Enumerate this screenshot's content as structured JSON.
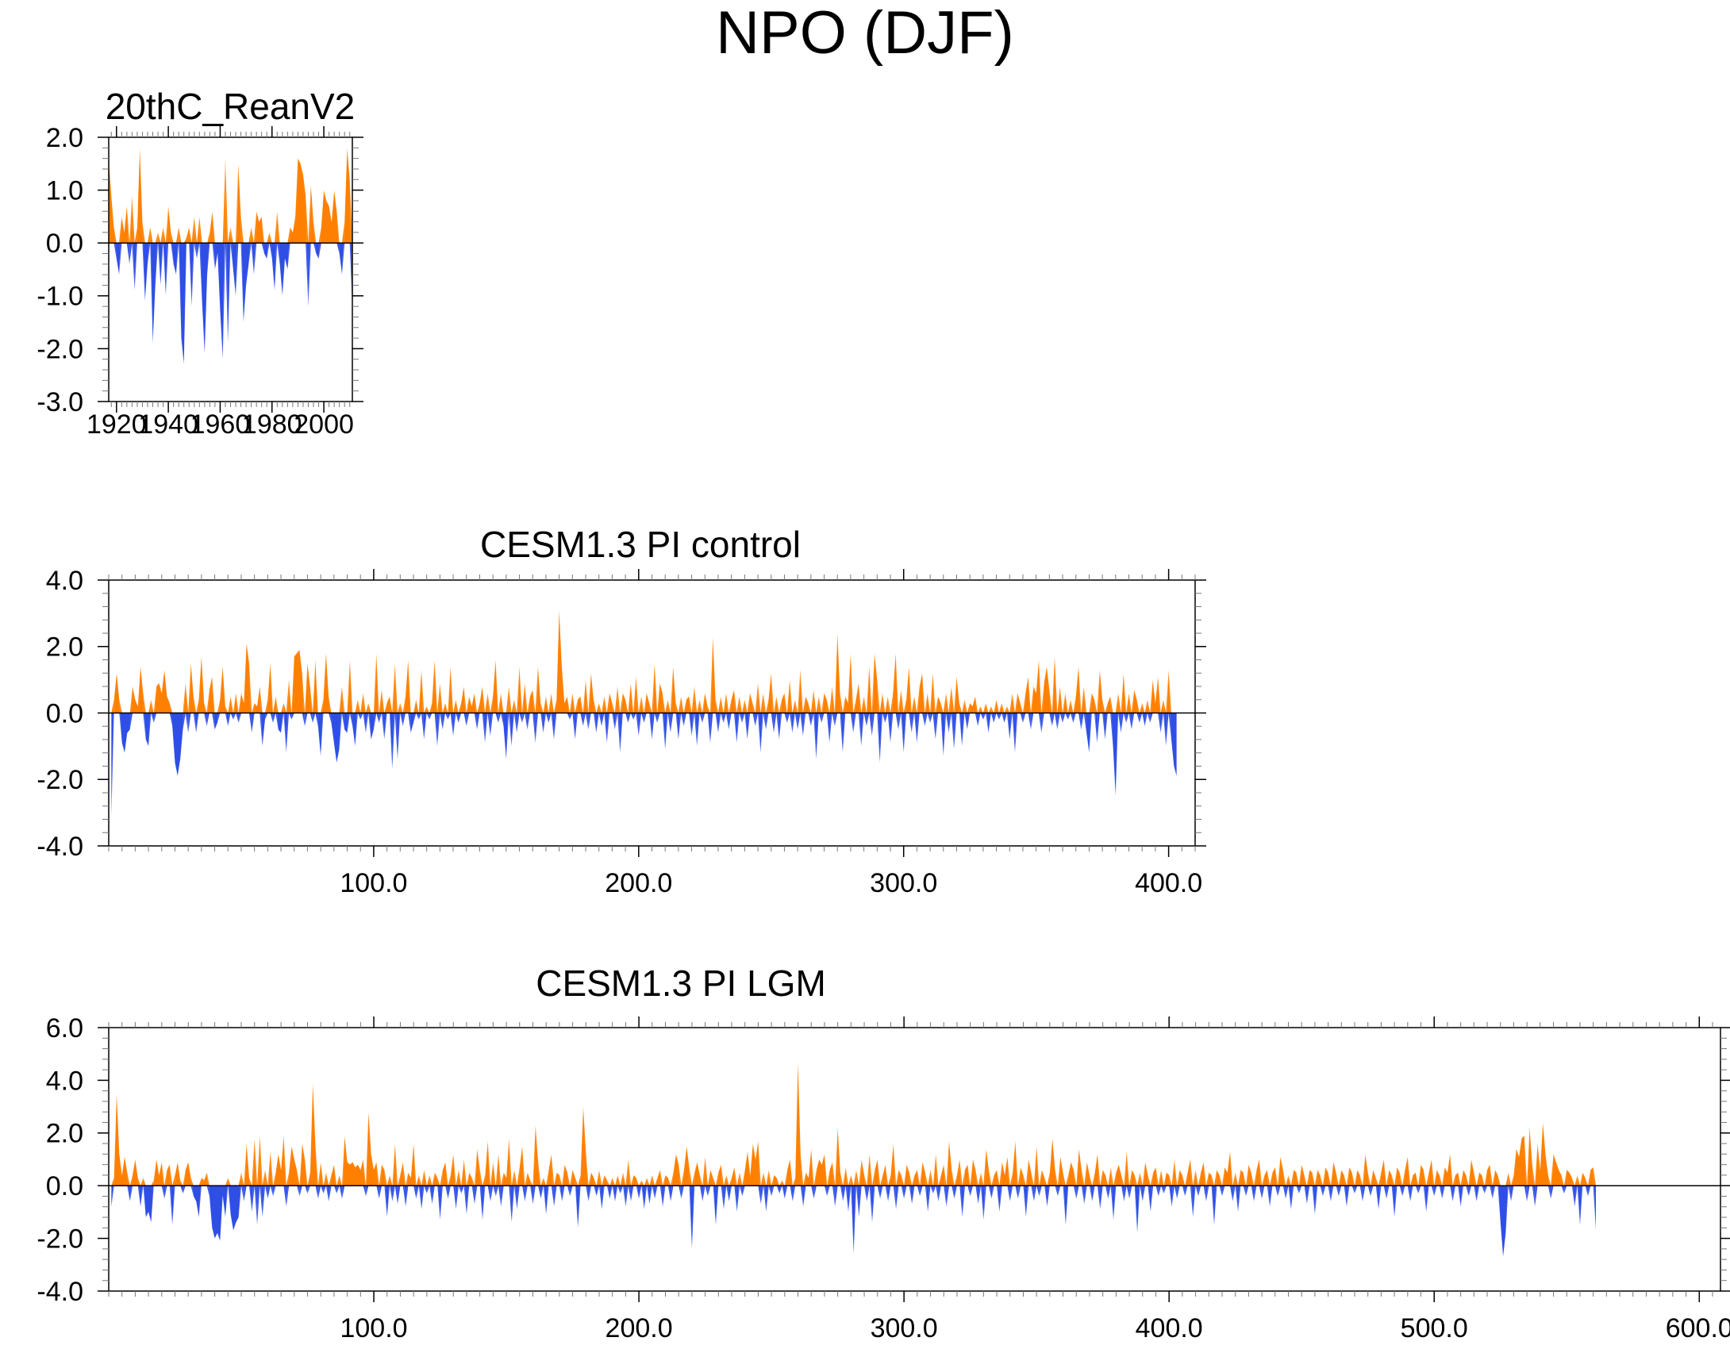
{
  "figure": {
    "title": "NPO (DJF)"
  },
  "colors": {
    "positive": "#ff8000",
    "negative": "#2e4ee6",
    "axis": "#000000"
  },
  "chart_data": [
    {
      "id": "reanalysis",
      "type": "area",
      "title": "20thC_ReanV2",
      "xlabel": "",
      "ylabel": "",
      "xlim": [
        1917,
        2011
      ],
      "ylim": [
        -3.0,
        2.0
      ],
      "xticks": [
        1920,
        1940,
        1960,
        1980,
        2000
      ],
      "xtick_labels": [
        "1920",
        "1940",
        "1960",
        "1980",
        "2000"
      ],
      "yticks": [
        -3.0,
        -2.0,
        -1.0,
        0.0,
        1.0,
        2.0
      ],
      "ytick_labels": [
        "-3.0",
        "-2.0",
        "-1.0",
        "0.0",
        "1.0",
        "2.0"
      ],
      "fill_above_zero": "orange",
      "fill_below_zero": "blue",
      "x_start": 1917,
      "x_step": 1,
      "values": [
        1.6,
        0.9,
        0.3,
        -0.3,
        -0.6,
        0.5,
        0.2,
        0.7,
        -0.4,
        0.9,
        -0.9,
        0.3,
        1.8,
        0.4,
        -1.1,
        -0.4,
        0.3,
        -1.9,
        -0.8,
        0.2,
        -0.8,
        0.3,
        -1.0,
        0.7,
        0.2,
        -0.4,
        -0.6,
        0.3,
        -1.8,
        -2.3,
        0.1,
        0.3,
        -1.2,
        0.5,
        -0.3,
        0.5,
        -1.1,
        -2.1,
        -0.6,
        0.2,
        0.6,
        -0.5,
        -0.2,
        -1.3,
        -2.2,
        1.6,
        -1.9,
        0.3,
        -0.5,
        -1.0,
        1.5,
        0.5,
        -1.5,
        -0.8,
        -0.4,
        0.3,
        -0.6,
        0.6,
        0.4,
        0.5,
        -0.2,
        -0.3,
        0.2,
        -0.3,
        -0.9,
        0.6,
        -0.4,
        -1.0,
        -0.3,
        -0.5,
        0.3,
        0.2,
        0.5,
        1.6,
        1.5,
        1.3,
        0.9,
        -1.2,
        1.1,
        0.4,
        -0.2,
        -0.3,
        0.3,
        1.0,
        0.8,
        0.7,
        0.4,
        1.0,
        0.6,
        -0.2,
        -0.6,
        0.4,
        1.8,
        1.2,
        -1.2
      ]
    },
    {
      "id": "pi-control",
      "type": "area",
      "title": "CESM1.3 PI control",
      "xlabel": "",
      "ylabel": "",
      "xlim": [
        0,
        410
      ],
      "ylim": [
        -4.0,
        4.0
      ],
      "xticks": [
        100,
        200,
        300,
        400
      ],
      "xtick_labels": [
        "100.0",
        "200.0",
        "300.0",
        "400.0"
      ],
      "yticks": [
        -4.0,
        -2.0,
        0.0,
        2.0,
        4.0
      ],
      "ytick_labels": [
        "-4.0",
        "-2.0",
        "0.0",
        "2.0",
        "4.0"
      ],
      "fill_above_zero": "orange",
      "fill_below_zero": "blue",
      "x_start": 1,
      "x_step": 1,
      "values": [
        -3.1,
        0.4,
        1.2,
        0.4,
        -0.9,
        -1.2,
        -0.6,
        -0.5,
        0.8,
        0.4,
        0.2,
        1.4,
        0.6,
        -0.8,
        -1.0,
        0.4,
        -0.3,
        0.8,
        0.9,
        0.6,
        1.3,
        0.5,
        0.3,
        -0.4,
        -1.5,
        -1.9,
        -1.4,
        -0.5,
        0.9,
        -0.6,
        1.5,
        0.5,
        -0.6,
        0.4,
        1.7,
        0.3,
        -0.4,
        0.7,
        1.1,
        -0.5,
        -0.3,
        0.4,
        1.4,
        0.2,
        -0.4,
        0.5,
        -0.2,
        0.6,
        -0.3,
        0.6,
        0.3,
        2.1,
        1.5,
        -0.6,
        0.3,
        0.2,
        0.8,
        -1.0,
        -0.2,
        0.4,
        1.5,
        -0.3,
        0.5,
        -0.5,
        -0.6,
        0.3,
        -1.2,
        1.0,
        -0.2,
        1.7,
        1.8,
        1.9,
        1.2,
        -0.4,
        1.5,
        0.8,
        -0.3,
        1.6,
        -0.4,
        -1.3,
        0.4,
        1.8,
        0.5,
        -0.3,
        -0.9,
        -1.5,
        -1.1,
        0.8,
        -0.5,
        -0.6,
        1.6,
        -0.4,
        -1.0,
        0.4,
        -0.2,
        0.6,
        -0.6,
        0.3,
        -0.8,
        -0.5,
        1.8,
        -0.3,
        0.7,
        -0.8,
        0.3,
        0.5,
        -1.7,
        1.5,
        -1.4,
        0.3,
        -0.4,
        0.5,
        1.6,
        -0.6,
        -0.3,
        0.4,
        -0.2,
        1.3,
        -0.8,
        0.2,
        -0.2,
        0.3,
        1.6,
        -1.0,
        0.9,
        -0.5,
        0.3,
        -0.2,
        1.4,
        -0.7,
        0.4,
        -0.3,
        0.3,
        0.8,
        -0.4,
        0.5,
        0.2,
        0.6,
        -0.5,
        0.3,
        0.8,
        -0.9,
        0.6,
        -0.7,
        0.5,
        1.6,
        -0.3,
        0.6,
        -0.4,
        -1.4,
        0.8,
        -1.0,
        0.4,
        -0.6,
        1.4,
        -0.3,
        0.9,
        -0.5,
        0.5,
        0.7,
        -0.9,
        1.4,
        0.3,
        -0.6,
        0.5,
        -0.3,
        0.6,
        -0.8,
        0.4,
        3.1,
        1.4,
        0.3,
        0.5,
        -0.2,
        0.6,
        -0.8,
        0.4,
        0.5,
        -0.4,
        1.0,
        -0.5,
        1.2,
        0.4,
        -0.6,
        0.3,
        -0.4,
        0.5,
        -0.9,
        0.6,
        0.3,
        -0.5,
        0.8,
        -1.2,
        0.6,
        0.4,
        -0.3,
        0.9,
        -0.2,
        1.1,
        -0.7,
        0.5,
        -0.3,
        0.6,
        0.3,
        -0.8,
        1.5,
        -0.3,
        0.9,
        0.6,
        -1.1,
        0.4,
        -0.6,
        1.4,
        0.3,
        -0.8,
        0.5,
        -0.4,
        0.4,
        0.5,
        -0.7,
        0.8,
        -1.0,
        0.4,
        -0.3,
        0.6,
        0.2,
        -0.9,
        2.3,
        0.4,
        -0.6,
        0.5,
        -0.3,
        0.6,
        -0.5,
        0.4,
        0.7,
        -0.9,
        0.5,
        -0.3,
        0.4,
        -0.8,
        0.6,
        0.3,
        -0.4,
        0.9,
        -1.2,
        0.6,
        -0.5,
        0.4,
        1.2,
        -0.6,
        0.5,
        -0.8,
        0.4,
        0.6,
        -0.3,
        1.0,
        -0.6,
        0.4,
        -0.5,
        1.3,
        -0.7,
        0.5,
        0.3,
        -0.4,
        0.7,
        -1.4,
        0.5,
        -0.3,
        0.6,
        0.4,
        -0.9,
        0.8,
        -0.4,
        2.4,
        0.6,
        -1.2,
        0.5,
        0.3,
        1.8,
        -0.6,
        0.4,
        0.9,
        -1.0,
        0.5,
        -0.4,
        1.4,
        -0.7,
        1.8,
        1.0,
        -1.5,
        0.6,
        -0.3,
        0.5,
        -0.9,
        0.6,
        1.8,
        -0.5,
        0.7,
        -1.2,
        0.4,
        1.4,
        -0.6,
        0.5,
        -0.9,
        0.8,
        1.2,
        -0.4,
        0.6,
        -0.3,
        1.2,
        -0.8,
        0.5,
        0.3,
        -1.3,
        0.6,
        -0.6,
        0.8,
        -1.1,
        1.1,
        0.3,
        -1.0,
        0.4,
        -0.5,
        0.3,
        0.2,
        0.5,
        -0.4,
        0.2,
        -0.2,
        0.3,
        -0.6,
        0.2,
        -0.3,
        0.4,
        -0.2,
        0.3,
        -0.3,
        0.2,
        -0.8,
        0.6,
        -1.2,
        0.6,
        0.3,
        -0.3,
        0.6,
        1.1,
        -0.5,
        0.8,
        0.6,
        1.6,
        -0.6,
        0.9,
        1.4,
        0.7,
        -0.4,
        1.7,
        -0.5,
        0.8,
        -0.3,
        0.6,
        -0.2,
        0.4,
        -0.3,
        0.5,
        1.4,
        -0.5,
        0.8,
        -0.6,
        -1.2,
        0.6,
        0.4,
        -0.9,
        1.3,
        0.4,
        -0.8,
        0.3,
        0.5,
        -1.0,
        -2.5,
        0.6,
        -0.6,
        1.2,
        -0.3,
        0.6,
        -0.5,
        0.7,
        0.4,
        -0.3,
        0.3,
        -0.4,
        0.4,
        -0.3,
        1.0,
        0.3,
        1.1,
        -0.6,
        0.4,
        -1.0,
        1.3,
        -0.8,
        -1.6,
        -1.9
      ]
    },
    {
      "id": "pi-lgm",
      "type": "area",
      "title": "CESM1.3 PI LGM",
      "xlabel": "",
      "ylabel": "",
      "xlim": [
        0,
        608
      ],
      "ylim": [
        -4.0,
        6.0
      ],
      "xticks": [
        100,
        200,
        300,
        400,
        500,
        600
      ],
      "xtick_labels": [
        "100.0",
        "200.0",
        "300.0",
        "400.0",
        "500.0",
        "600.0"
      ],
      "yticks": [
        -4.0,
        -2.0,
        0.0,
        2.0,
        4.0,
        6.0
      ],
      "ytick_labels": [
        "-4.0",
        "-2.0",
        "0.0",
        "2.0",
        "4.0",
        "6.0"
      ],
      "fill_above_zero": "orange",
      "fill_below_zero": "blue",
      "x_start": 1,
      "x_step": 1,
      "values": [
        -0.8,
        0.3,
        3.5,
        1.2,
        0.4,
        1.1,
        0.5,
        -0.6,
        0.4,
        1.0,
        0.3,
        -0.8,
        0.3,
        -1.2,
        -1.0,
        -1.4,
        0.2,
        1.0,
        0.4,
        0.9,
        -0.5,
        0.6,
        0.8,
        -1.5,
        0.4,
        0.9,
        0.2,
        -0.3,
        0.6,
        0.9,
        0.3,
        -0.4,
        -0.6,
        -1.2,
        0.3,
        0.2,
        0.5,
        -0.4,
        -1.6,
        -2.0,
        -1.8,
        -2.1,
        -0.4,
        -1.2,
        0.3,
        -1.1,
        -1.7,
        -1.4,
        -1.2,
        0.5,
        -0.6,
        1.6,
        0.3,
        -1.0,
        1.8,
        -1.5,
        1.9,
        -1.2,
        0.6,
        -0.5,
        1.3,
        -0.4,
        0.5,
        1.2,
        0.6,
        1.9,
        -0.8,
        0.5,
        1.5,
        1.0,
        0.6,
        -0.4,
        1.6,
        1.0,
        -0.3,
        0.5,
        3.9,
        1.5,
        -0.5,
        0.9,
        -0.3,
        0.5,
        -0.6,
        0.4,
        0.8,
        -0.3,
        0.4,
        -0.5,
        1.9,
        0.9,
        0.8,
        0.9,
        0.7,
        0.8,
        0.6,
        1.0,
        -0.4,
        2.8,
        1.2,
        0.6,
        0.9,
        -0.5,
        0.8,
        0.6,
        -1.2,
        0.4,
        -0.6,
        1.6,
        -0.7,
        0.4,
        0.9,
        -0.8,
        0.5,
        0.3,
        1.6,
        -0.5,
        0.4,
        -0.9,
        0.6,
        -0.3,
        0.4,
        -0.7,
        0.5,
        0.3,
        -1.3,
        0.6,
        0.9,
        -0.5,
        0.4,
        1.2,
        -0.9,
        0.6,
        -0.3,
        1.0,
        -1.1,
        0.5,
        0.3,
        -0.7,
        1.4,
        0.6,
        -1.3,
        0.4,
        1.7,
        -0.6,
        0.9,
        -0.4,
        1.2,
        -0.8,
        0.5,
        0.3,
        1.8,
        -1.4,
        0.6,
        -0.9,
        0.7,
        1.5,
        -0.6,
        0.5,
        0.2,
        -0.7,
        2.3,
        0.9,
        -0.5,
        0.3,
        -1.1,
        0.6,
        1.2,
        -0.8,
        0.5,
        0.4,
        -0.6,
        0.8,
        0.5,
        -0.4,
        0.6,
        0.3,
        -1.6,
        0.4,
        3.0,
        1.3,
        -0.6,
        0.5,
        0.3,
        -0.4,
        0.6,
        -0.9,
        0.4,
        0.2,
        -0.5,
        0.3,
        -0.6,
        0.4,
        -0.3,
        0.5,
        -0.8,
        1.0,
        -0.6,
        0.4,
        0.3,
        -0.5,
        0.2,
        -0.9,
        0.3,
        -0.7,
        0.4,
        -0.5,
        0.3,
        0.6,
        -0.8,
        0.4,
        0.3,
        -0.6,
        0.5,
        1.2,
        0.8,
        -0.5,
        0.6,
        1.5,
        0.7,
        -2.4,
        0.5,
        0.9,
        0.4,
        -0.6,
        1.1,
        -0.4,
        0.6,
        0.3,
        -1.5,
        0.5,
        0.8,
        -0.9,
        0.4,
        -0.6,
        0.3,
        0.7,
        -1.0,
        0.5,
        -0.4,
        0.6,
        1.3,
        0.4,
        1.6,
        1.0,
        1.7,
        -0.7,
        0.5,
        -1.0,
        0.6,
        -0.4,
        0.4,
        0.3,
        -0.3,
        0.2,
        -0.5,
        0.6,
        1.0,
        -0.6,
        0.3,
        4.7,
        1.2,
        -0.8,
        0.5,
        0.3,
        1.4,
        -0.5,
        0.6,
        1.0,
        0.8,
        1.2,
        -0.4,
        0.6,
        0.9,
        -0.8,
        2.2,
        0.5,
        -0.6,
        0.7,
        -1.0,
        0.4,
        -2.6,
        0.6,
        -1.2,
        1.0,
        0.4,
        -0.6,
        1.2,
        -1.4,
        0.6,
        1.0,
        -0.5,
        0.4,
        0.8,
        -0.6,
        0.4,
        1.6,
        -0.9,
        0.6,
        0.4,
        -0.5,
        0.8,
        0.5,
        -0.7,
        0.4,
        0.6,
        -0.4,
        0.9,
        0.5,
        -1.0,
        0.6,
        -0.3,
        1.2,
        -0.6,
        0.4,
        0.8,
        -0.8,
        1.7,
        0.6,
        -0.5,
        0.4,
        1.0,
        -1.2,
        0.6,
        0.8,
        -0.4,
        1.0,
        0.6,
        -0.7,
        0.5,
        -1.3,
        1.4,
        0.6,
        -0.5,
        0.4,
        0.6,
        -1.0,
        0.9,
        0.4,
        1.1,
        -0.6,
        0.5,
        1.7,
        -0.5,
        0.7,
        0.4,
        -1.2,
        1.0,
        0.5,
        -0.6,
        1.5,
        -0.4,
        0.6,
        0.3,
        -0.8,
        0.5,
        1.8,
        0.6,
        -0.4,
        1.1,
        0.5,
        -1.5,
        0.4,
        0.9,
        0.6,
        -0.5,
        1.4,
        0.6,
        -0.7,
        0.9,
        0.4,
        -0.6,
        0.5,
        1.2,
        -0.9,
        0.6,
        0.4,
        -0.5,
        0.7,
        -1.3,
        0.5,
        0.8,
        0.4,
        -0.6,
        1.3,
        -0.5,
        0.6,
        0.4,
        -1.8,
        0.5,
        -0.6,
        0.9,
        0.4,
        -1.0,
        0.5,
        0.7,
        -0.4,
        0.6,
        -0.3,
        0.5,
        0.4,
        -0.8,
        1.0,
        -0.5,
        0.6,
        0.4,
        -0.4,
        0.5,
        1.0,
        -1.2,
        0.6,
        -0.4,
        0.5,
        0.9,
        -0.6,
        0.5,
        0.4,
        -1.5,
        0.6,
        0.4,
        -0.4,
        0.7,
        0.5,
        1.3,
        -0.6,
        0.5,
        -1.0,
        0.6,
        0.5,
        -0.4,
        0.8,
        0.5,
        -0.6,
        0.6,
        1.0,
        -0.5,
        0.4,
        0.6,
        -0.8,
        0.5,
        0.7,
        -0.4,
        1.1,
        0.6,
        -0.5,
        0.4,
        -0.9,
        0.6,
        0.5,
        -0.3,
        0.8,
        0.4,
        -0.7,
        0.6,
        0.5,
        -1.1,
        0.6,
        0.4,
        -0.4,
        0.7,
        0.5,
        -0.6,
        0.9,
        0.5,
        -0.4,
        0.6,
        0.4,
        -0.8,
        0.7,
        0.5,
        -0.3,
        0.6,
        0.4,
        -0.6,
        1.2,
        0.5,
        -0.4,
        0.6,
        0.3,
        -0.9,
        0.5,
        1.0,
        -0.5,
        0.6,
        0.4,
        -1.2,
        0.7,
        0.5,
        -0.4,
        0.6,
        1.1,
        -0.6,
        0.4,
        0.5,
        -0.3,
        0.8,
        0.6,
        -1.0,
        0.5,
        1.0,
        -0.4,
        0.6,
        0.4,
        -0.5,
        0.7,
        0.5,
        1.2,
        -0.6,
        0.4,
        0.5,
        -0.8,
        0.6,
        0.4,
        -0.4,
        1.0,
        0.5,
        -0.6,
        0.5,
        0.4,
        -0.3,
        0.6,
        0.8,
        -0.5,
        0.6,
        0.4,
        -1.4,
        -2.7,
        -1.8,
        0.5,
        -0.6,
        0.4,
        1.4,
        1.1,
        1.8,
        1.9,
        -0.6,
        2.2,
        0.8,
        -0.8,
        1.6,
        0.6,
        2.4,
        1.2,
        0.4,
        -0.5,
        1.2,
        0.9,
        0.6,
        0.4,
        -0.3,
        0.6,
        0.5,
        0.3,
        -0.8,
        0.4,
        -1.5,
        0.5,
        0.3,
        -0.4,
        0.6,
        0.7,
        -1.7
      ]
    }
  ]
}
